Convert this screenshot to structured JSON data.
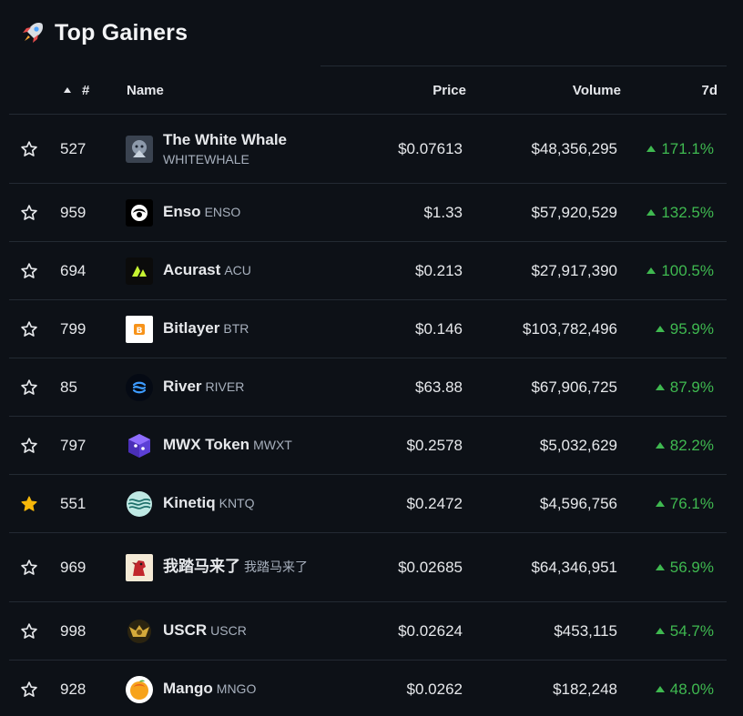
{
  "header": {
    "title": "Top Gainers",
    "icon": "rocket-icon"
  },
  "table": {
    "columns": {
      "rank": "#",
      "name": "Name",
      "price": "Price",
      "volume": "Volume",
      "change": "7d"
    },
    "rows": [
      {
        "starred": false,
        "rank": "527",
        "name": "The White Whale",
        "symbol": "WHITEWHALE",
        "price": "$0.07613",
        "volume": "$48,356,295",
        "change": "171.1%",
        "logo": "white-whale-logo"
      },
      {
        "starred": false,
        "rank": "959",
        "name": "Enso",
        "symbol": "ENSO",
        "price": "$1.33",
        "volume": "$57,920,529",
        "change": "132.5%",
        "logo": "enso-logo"
      },
      {
        "starred": false,
        "rank": "694",
        "name": "Acurast",
        "symbol": "ACU",
        "price": "$0.213",
        "volume": "$27,917,390",
        "change": "100.5%",
        "logo": "acurast-logo"
      },
      {
        "starred": false,
        "rank": "799",
        "name": "Bitlayer",
        "symbol": "BTR",
        "price": "$0.146",
        "volume": "$103,782,496",
        "change": "95.9%",
        "logo": "bitlayer-logo"
      },
      {
        "starred": false,
        "rank": "85",
        "name": "River",
        "symbol": "RIVER",
        "price": "$63.88",
        "volume": "$67,906,725",
        "change": "87.9%",
        "logo": "river-logo"
      },
      {
        "starred": false,
        "rank": "797",
        "name": "MWX Token",
        "symbol": "MWXT",
        "price": "$0.2578",
        "volume": "$5,032,629",
        "change": "82.2%",
        "logo": "mwx-logo"
      },
      {
        "starred": true,
        "rank": "551",
        "name": "Kinetiq",
        "symbol": "KNTQ",
        "price": "$0.2472",
        "volume": "$4,596,756",
        "change": "76.1%",
        "logo": "kinetiq-logo"
      },
      {
        "starred": false,
        "rank": "969",
        "name": "我踏马来了",
        "symbol": "我踏马来了",
        "price": "$0.02685",
        "volume": "$64,346,951",
        "change": "56.9%",
        "logo": "horse-logo"
      },
      {
        "starred": false,
        "rank": "998",
        "name": "USCR",
        "symbol": "USCR",
        "price": "$0.02624",
        "volume": "$453,115",
        "change": "54.7%",
        "logo": "uscr-logo"
      },
      {
        "starred": false,
        "rank": "928",
        "name": "Mango",
        "symbol": "MNGO",
        "price": "$0.0262",
        "volume": "$182,248",
        "change": "48.0%",
        "logo": "mango-logo"
      }
    ]
  },
  "colors": {
    "background": "#0d1117",
    "positive": "#3fb950",
    "star_active": "#f5b70a",
    "separator": "#232a33"
  }
}
